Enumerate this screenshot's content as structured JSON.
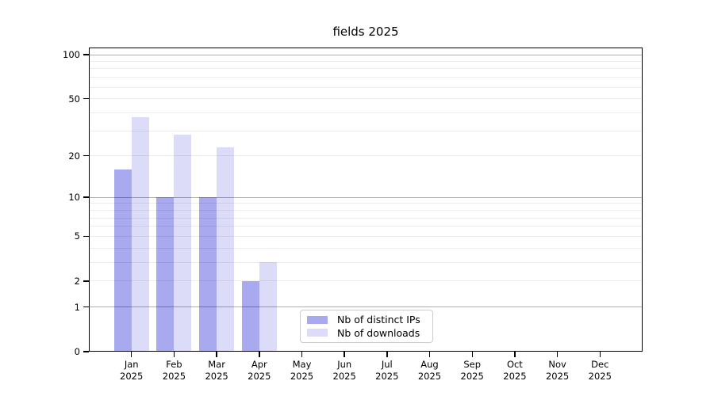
{
  "title": "fields 2025",
  "chart_data": {
    "type": "bar",
    "categories": [
      "Jan",
      "Feb",
      "Mar",
      "Apr",
      "May",
      "Jun",
      "Jul",
      "Aug",
      "Sep",
      "Oct",
      "Nov",
      "Dec"
    ],
    "year_label": "2025",
    "series": [
      {
        "name": "Nb of distinct IPs",
        "color": "#a9a9ef",
        "values": [
          16,
          10,
          10,
          2,
          0,
          0,
          0,
          0,
          0,
          0,
          0,
          0
        ]
      },
      {
        "name": "Nb of downloads",
        "color": "#dcdcf8",
        "values": [
          37,
          28,
          23,
          3,
          0,
          0,
          0,
          0,
          0,
          0,
          0,
          0
        ]
      }
    ],
    "xlabel": "",
    "ylabel": "",
    "y_scale": "log10(value+1)",
    "y_ticks_labeled": [
      0,
      1,
      2,
      5,
      10,
      20,
      50,
      100
    ],
    "y_minor_gridlines": [
      2,
      3,
      4,
      5,
      6,
      7,
      8,
      9,
      20,
      30,
      40,
      50,
      60,
      70,
      80,
      90
    ],
    "y_major_gridlines": [
      1,
      10,
      100
    ],
    "ylim": [
      0,
      112
    ],
    "grid": "on",
    "legend_position": "inside-bottom-center",
    "background_color": "#ffffff",
    "axis_color": "#000000"
  }
}
